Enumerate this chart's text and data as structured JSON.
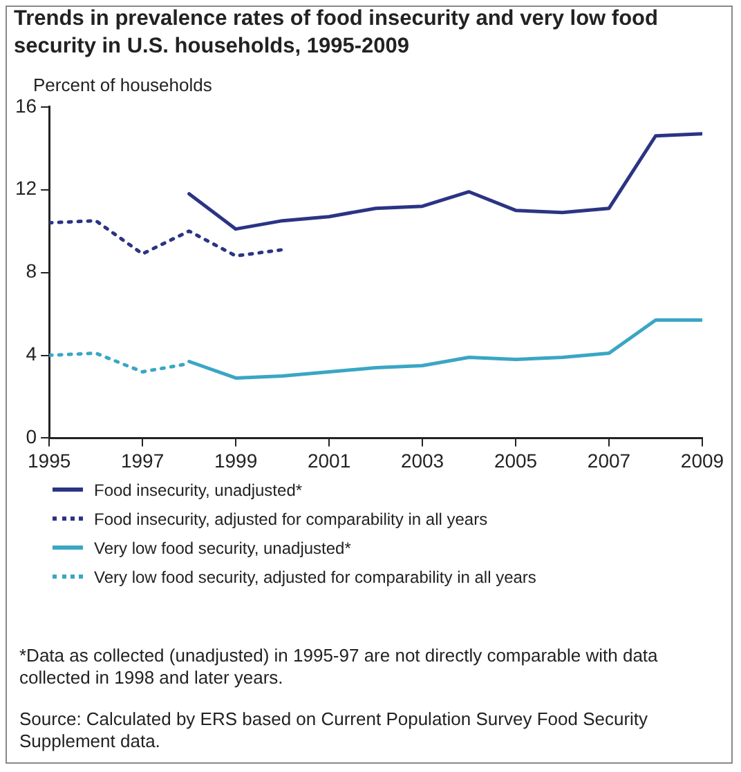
{
  "chart_data": {
    "type": "line",
    "title": "Trends in prevalence rates of food insecurity and very low food security in U.S. households, 1995-2009",
    "ylabel": "Percent of households",
    "xlim": [
      1995,
      2009
    ],
    "xticks": [
      1995,
      1997,
      1999,
      2001,
      2003,
      2005,
      2007,
      2009
    ],
    "ylim": [
      0,
      16
    ],
    "yticks": [
      0,
      4,
      8,
      12,
      16
    ],
    "grid": false,
    "legend": "bottom",
    "marker": "none",
    "series": [
      {
        "name": "Food insecurity, unadjusted*",
        "color": "#2b3483",
        "line_style": "solid",
        "x": [
          1998,
          1999,
          2000,
          2001,
          2002,
          2003,
          2004,
          2005,
          2006,
          2007,
          2008,
          2009
        ],
        "values": [
          11.8,
          10.1,
          10.5,
          10.7,
          11.1,
          11.2,
          11.9,
          11.0,
          10.9,
          11.1,
          14.6,
          14.7
        ]
      },
      {
        "name": "Food insecurity, adjusted for comparability in all years",
        "color": "#2b3483",
        "line_style": "dotted",
        "x": [
          1995,
          1996,
          1997,
          1998,
          1999,
          2000
        ],
        "values": [
          10.4,
          10.5,
          8.9,
          10.0,
          8.8,
          9.1
        ]
      },
      {
        "name": "Very low food security, unadjusted*",
        "color": "#3aa6c4",
        "line_style": "solid",
        "x": [
          1998,
          1999,
          2000,
          2001,
          2002,
          2003,
          2004,
          2005,
          2006,
          2007,
          2008,
          2009
        ],
        "values": [
          3.7,
          2.9,
          3.0,
          3.2,
          3.4,
          3.5,
          3.9,
          3.8,
          3.9,
          4.1,
          5.7,
          5.7
        ]
      },
      {
        "name": "Very low food security, adjusted for comparability in all years",
        "color": "#3aa6c4",
        "line_style": "dotted",
        "x": [
          1995,
          1996,
          1997,
          1998
        ],
        "values": [
          4.0,
          4.1,
          3.2,
          3.6
        ]
      }
    ],
    "annotations": [
      "*Data as collected (unadjusted) in 1995-97 are not directly comparable with data collected in 1998 and later years.",
      "Source: Calculated by ERS based on Current Population Survey Food Security Supplement data."
    ]
  }
}
